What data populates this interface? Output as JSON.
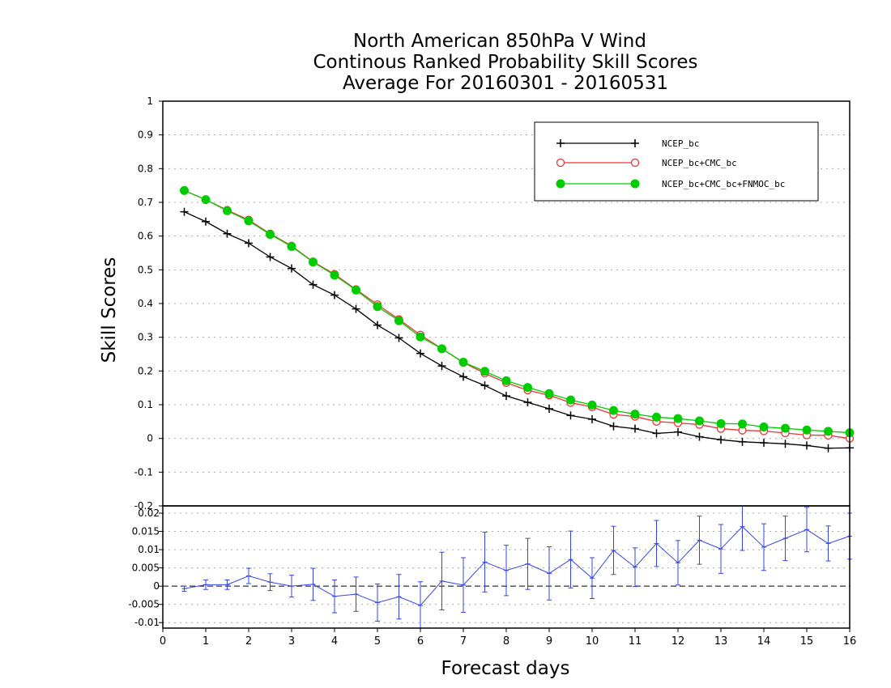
{
  "chart_data": [
    {
      "type": "line",
      "title": [
        "North American 850hPa V Wind",
        "Continous Ranked Probability Skill Scores",
        "Average For 20160301 - 20160531"
      ],
      "ylabel": "Skill Scores",
      "xlabel": "Forecast days",
      "xlim": [
        0,
        16
      ],
      "ylim": [
        -0.2,
        1
      ],
      "yticks": [
        "-0.2",
        "-0.1",
        "0",
        "0.1",
        "0.2",
        "0.3",
        "0.4",
        "0.5",
        "0.6",
        "0.7",
        "0.8",
        "0.9",
        "1"
      ],
      "xticks": [
        "0",
        "1",
        "2",
        "3",
        "4",
        "5",
        "6",
        "7",
        "8",
        "9",
        "10",
        "11",
        "12",
        "13",
        "14",
        "15",
        "16"
      ],
      "grid": true,
      "legend_position": "top-right",
      "x": [
        0.5,
        1.0,
        1.5,
        2.0,
        2.5,
        3.0,
        3.5,
        4.0,
        4.5,
        5.0,
        5.5,
        6.0,
        6.5,
        7.0,
        7.5,
        8.0,
        8.5,
        9.0,
        9.5,
        10.0,
        10.5,
        11.0,
        11.5,
        12.0,
        12.5,
        13.0,
        13.5,
        14.0,
        14.5,
        15.0,
        15.5,
        16.0
      ],
      "series": [
        {
          "name": "NCEP_bc",
          "color": "#000000",
          "marker": "plus",
          "values": [
            0.672,
            0.643,
            0.607,
            0.579,
            0.538,
            0.504,
            0.456,
            0.425,
            0.384,
            0.336,
            0.298,
            0.252,
            0.215,
            0.183,
            0.157,
            0.126,
            0.107,
            0.088,
            0.068,
            0.057,
            0.036,
            0.029,
            0.015,
            0.019,
            0.005,
            -0.004,
            -0.01,
            -0.013,
            -0.016,
            -0.021,
            -0.029,
            -0.028
          ]
        },
        {
          "name": "NCEP_bc+CMC_bc",
          "color": "#ee3333",
          "marker": "open-circle",
          "values": [
            0.735,
            0.708,
            0.677,
            0.648,
            0.607,
            0.571,
            0.524,
            0.487,
            0.442,
            0.397,
            0.353,
            0.307,
            0.266,
            0.225,
            0.193,
            0.165,
            0.143,
            0.128,
            0.106,
            0.093,
            0.071,
            0.065,
            0.05,
            0.046,
            0.041,
            0.029,
            0.024,
            0.022,
            0.016,
            0.01,
            0.009,
            0.0
          ]
        },
        {
          "name": "NCEP_bc+CMC_bc+FNMOC_bc",
          "color": "#00cc00",
          "marker": "filled-circle",
          "values": [
            0.735,
            0.708,
            0.675,
            0.645,
            0.605,
            0.569,
            0.523,
            0.484,
            0.44,
            0.391,
            0.349,
            0.301,
            0.266,
            0.226,
            0.199,
            0.171,
            0.151,
            0.133,
            0.114,
            0.099,
            0.083,
            0.072,
            0.063,
            0.059,
            0.052,
            0.044,
            0.043,
            0.034,
            0.03,
            0.025,
            0.021,
            0.017
          ]
        }
      ]
    },
    {
      "type": "line",
      "xlim": [
        0,
        16
      ],
      "ylim": [
        -0.0115,
        0.022
      ],
      "yticks": [
        "-0.01",
        "-0.005",
        "0",
        "0.005",
        "0.01",
        "0.015",
        "0.02"
      ],
      "grid": true,
      "zero_line": true,
      "x": [
        0.5,
        1.0,
        1.5,
        2.0,
        2.5,
        3.0,
        3.5,
        4.0,
        4.5,
        5.0,
        5.5,
        6.0,
        6.5,
        7.0,
        7.5,
        8.0,
        8.5,
        9.0,
        9.5,
        10.0,
        10.5,
        11.0,
        11.5,
        12.0,
        12.5,
        13.0,
        13.5,
        14.0,
        14.5,
        15.0,
        15.5,
        16.0
      ],
      "series": [
        {
          "color": "#3344ee",
          "values": [
            -0.0007,
            0.0004,
            0.0004,
            0.0028,
            0.0011,
            0.0,
            0.0005,
            -0.0028,
            -0.0022,
            -0.0045,
            -0.0029,
            -0.0053,
            0.0014,
            0.0003,
            0.0066,
            0.0043,
            0.0061,
            0.0035,
            0.0073,
            0.0022,
            0.0098,
            0.0052,
            0.0117,
            0.0064,
            0.0126,
            0.0102,
            0.0163,
            0.0107,
            0.0131,
            0.0155,
            0.0117,
            0.0137
          ],
          "error": [
            0.0007,
            0.0013,
            0.0013,
            0.0021,
            0.0023,
            0.003,
            0.0044,
            0.0045,
            0.0047,
            0.0051,
            0.0061,
            0.0065,
            0.0079,
            0.0075,
            0.0082,
            0.0069,
            0.007,
            0.0073,
            0.0078,
            0.0056,
            0.0066,
            0.0053,
            0.0063,
            0.0061,
            0.0066,
            0.0067,
            0.0065,
            0.0064,
            0.0061,
            0.0061,
            0.0048,
            0.0063
          ]
        }
      ]
    }
  ]
}
